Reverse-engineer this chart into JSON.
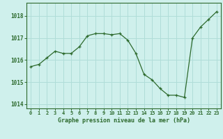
{
  "x": [
    0,
    1,
    2,
    3,
    4,
    5,
    6,
    7,
    8,
    9,
    10,
    11,
    12,
    13,
    14,
    15,
    16,
    17,
    18,
    19,
    20,
    21,
    22,
    23
  ],
  "y": [
    1015.7,
    1015.8,
    1016.1,
    1016.4,
    1016.3,
    1016.3,
    1016.6,
    1017.1,
    1017.2,
    1017.2,
    1017.15,
    1017.2,
    1016.9,
    1016.3,
    1015.35,
    1015.1,
    1014.7,
    1014.4,
    1014.4,
    1014.3,
    1017.0,
    1017.5,
    1017.85,
    1018.2
  ],
  "line_color": "#2d6a2d",
  "marker": "+",
  "marker_color": "#2d6a2d",
  "bg_color": "#cff0ec",
  "grid_color": "#b0ddd8",
  "xlabel": "Graphe pression niveau de la mer (hPa)",
  "xlabel_color": "#2d6a2d",
  "tick_color": "#2d6a2d",
  "axis_color": "#2d6a2d",
  "ylim": [
    1013.8,
    1018.6
  ],
  "xlim": [
    -0.5,
    23.5
  ],
  "yticks": [
    1014,
    1015,
    1016,
    1017,
    1018
  ],
  "xticks": [
    0,
    1,
    2,
    3,
    4,
    5,
    6,
    7,
    8,
    9,
    10,
    11,
    12,
    13,
    14,
    15,
    16,
    17,
    18,
    19,
    20,
    21,
    22,
    23
  ],
  "xtick_labels": [
    "0",
    "1",
    "2",
    "3",
    "4",
    "5",
    "6",
    "7",
    "8",
    "9",
    "10",
    "11",
    "12",
    "13",
    "14",
    "15",
    "16",
    "17",
    "18",
    "19",
    "20",
    "21",
    "22",
    "23"
  ]
}
